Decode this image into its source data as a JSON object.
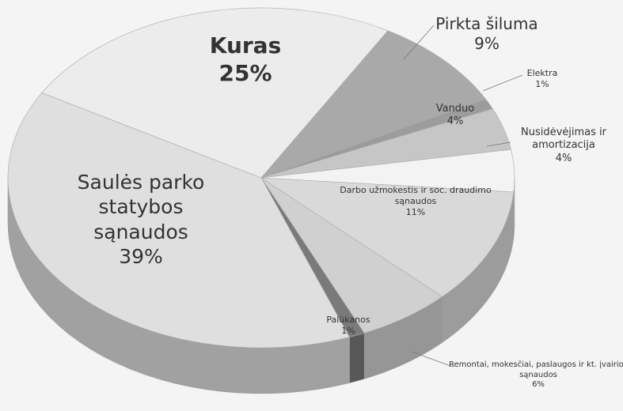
{
  "chart_data": {
    "type": "pie",
    "categories": [
      "Kuras",
      "Pirkta šiluma",
      "Elektra",
      "Vanduo",
      "Nusidėvėjimas ir amortizacija",
      "Darbo užmokestis ir soc. draudimo sąnaudos",
      "Remontai, mokesčiai, paslaugos ir kt. įvairios sąnaudos",
      "Palūkanos",
      "Saulės parko statybos sąnaudos"
    ],
    "values": [
      25,
      9,
      1,
      4,
      4,
      11,
      6,
      1,
      39
    ],
    "value_labels": [
      "25%",
      "9%",
      "1%",
      "4%",
      "4%",
      "11%",
      "6%",
      "1%",
      "39%"
    ],
    "colors": [
      "#ececec",
      "#a9a9a9",
      "#9c9c9c",
      "#c6c6c6",
      "#f3f3f3",
      "#d9d9d9",
      "#d0d0d0",
      "#7a7a7a",
      "#dfdfdf"
    ]
  }
}
